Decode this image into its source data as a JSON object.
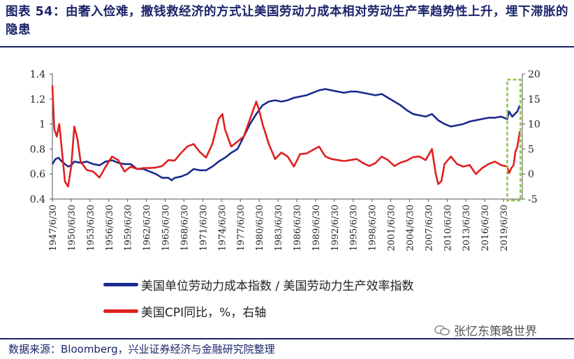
{
  "header": {
    "title": "图表 54：由奢入俭难，撒钱救经济的方式让美国劳动力成本相对劳动生产率趋势性上升，埋下滞胀的隐患"
  },
  "footer": {
    "source": "数据来源：Bloomberg，兴业证券经济与金融研究院整理",
    "watermark": "张忆东策略世界"
  },
  "colors": {
    "blue_series": "#1a2a8c",
    "red_series": "#e02020",
    "highlight_box": "#8bc34a"
  },
  "chart_data": {
    "type": "line",
    "title": "",
    "x_tick_labels": [
      "1947/6/30",
      "1950/6/30",
      "1953/6/30",
      "1956/6/30",
      "1959/6/30",
      "1962/6/30",
      "1965/6/30",
      "1968/6/30",
      "1971/6/30",
      "1974/6/30",
      "1977/6/30",
      "1980/6/30",
      "1983/6/30",
      "1986/6/30",
      "1989/6/30",
      "1992/6/30",
      "1995/6/30",
      "1998/6/30",
      "2001/6/30",
      "2004/6/30",
      "2007/6/30",
      "2010/6/30",
      "2013/6/30",
      "2016/6/30",
      "2019/6/30"
    ],
    "y_left": {
      "range": [
        0.4,
        1.4
      ],
      "ticks": [
        "0.4",
        "0.6",
        "0.8",
        "1",
        "1.2",
        "1.4"
      ]
    },
    "y_right": {
      "range": [
        -5,
        20
      ],
      "ticks": [
        "-5",
        "0",
        "5",
        "10",
        "15",
        "20"
      ]
    },
    "highlight": {
      "from_year": 2020.0,
      "to_year": 2022.1
    },
    "series": [
      {
        "name": "美国单位劳动力成本指数 / 美国劳动力生产效率指数",
        "axis": "left",
        "points": [
          [
            1947.5,
            0.68
          ],
          [
            1948.0,
            0.72
          ],
          [
            1948.5,
            0.73
          ],
          [
            1949.0,
            0.7
          ],
          [
            1949.5,
            0.68
          ],
          [
            1950.0,
            0.66
          ],
          [
            1950.5,
            0.67
          ],
          [
            1951.0,
            0.7
          ],
          [
            1952.0,
            0.69
          ],
          [
            1953.0,
            0.7
          ],
          [
            1954.0,
            0.68
          ],
          [
            1955.0,
            0.67
          ],
          [
            1956.0,
            0.7
          ],
          [
            1957.0,
            0.71
          ],
          [
            1958.0,
            0.69
          ],
          [
            1959.0,
            0.68
          ],
          [
            1960.0,
            0.68
          ],
          [
            1960.5,
            0.66
          ],
          [
            1961.0,
            0.64
          ],
          [
            1962.0,
            0.64
          ],
          [
            1963.0,
            0.62
          ],
          [
            1964.0,
            0.6
          ],
          [
            1965.0,
            0.57
          ],
          [
            1966.0,
            0.57
          ],
          [
            1966.5,
            0.55
          ],
          [
            1967.0,
            0.57
          ],
          [
            1968.0,
            0.58
          ],
          [
            1969.0,
            0.6
          ],
          [
            1970.0,
            0.64
          ],
          [
            1971.0,
            0.63
          ],
          [
            1972.0,
            0.63
          ],
          [
            1973.0,
            0.66
          ],
          [
            1974.0,
            0.7
          ],
          [
            1975.0,
            0.73
          ],
          [
            1976.0,
            0.77
          ],
          [
            1977.0,
            0.8
          ],
          [
            1978.0,
            0.9
          ],
          [
            1979.0,
            1.0
          ],
          [
            1980.0,
            1.08
          ],
          [
            1981.0,
            1.15
          ],
          [
            1982.0,
            1.18
          ],
          [
            1983.0,
            1.19
          ],
          [
            1984.0,
            1.18
          ],
          [
            1985.0,
            1.19
          ],
          [
            1986.0,
            1.21
          ],
          [
            1987.0,
            1.22
          ],
          [
            1988.0,
            1.23
          ],
          [
            1989.0,
            1.25
          ],
          [
            1990.0,
            1.27
          ],
          [
            1991.0,
            1.28
          ],
          [
            1992.0,
            1.27
          ],
          [
            1993.0,
            1.26
          ],
          [
            1994.0,
            1.25
          ],
          [
            1995.0,
            1.26
          ],
          [
            1996.0,
            1.26
          ],
          [
            1997.0,
            1.25
          ],
          [
            1998.0,
            1.24
          ],
          [
            1999.0,
            1.23
          ],
          [
            2000.0,
            1.24
          ],
          [
            2001.0,
            1.21
          ],
          [
            2002.0,
            1.18
          ],
          [
            2003.0,
            1.15
          ],
          [
            2004.0,
            1.11
          ],
          [
            2005.0,
            1.08
          ],
          [
            2006.0,
            1.07
          ],
          [
            2007.0,
            1.06
          ],
          [
            2008.0,
            1.08
          ],
          [
            2009.0,
            1.03
          ],
          [
            2010.0,
            1.0
          ],
          [
            2011.0,
            0.98
          ],
          [
            2012.0,
            0.99
          ],
          [
            2013.0,
            1.0
          ],
          [
            2014.0,
            1.02
          ],
          [
            2015.0,
            1.03
          ],
          [
            2016.0,
            1.04
          ],
          [
            2017.0,
            1.05
          ],
          [
            2018.0,
            1.05
          ],
          [
            2019.0,
            1.06
          ],
          [
            2020.0,
            1.04
          ],
          [
            2020.3,
            1.1
          ],
          [
            2020.8,
            1.06
          ],
          [
            2021.2,
            1.08
          ],
          [
            2021.6,
            1.1
          ],
          [
            2022.0,
            1.15
          ]
        ]
      },
      {
        "name": "美国CPI同比，%，右轴",
        "axis": "right",
        "points": [
          [
            1947.5,
            17.7
          ],
          [
            1947.8,
            9.0
          ],
          [
            1948.2,
            7.5
          ],
          [
            1948.6,
            10.0
          ],
          [
            1949.0,
            5.0
          ],
          [
            1949.5,
            -1.5
          ],
          [
            1950.0,
            -2.5
          ],
          [
            1950.5,
            1.5
          ],
          [
            1951.0,
            9.5
          ],
          [
            1951.5,
            7.0
          ],
          [
            1952.0,
            2.5
          ],
          [
            1953.0,
            0.8
          ],
          [
            1954.0,
            0.5
          ],
          [
            1955.0,
            -0.7
          ],
          [
            1956.0,
            1.5
          ],
          [
            1957.0,
            3.5
          ],
          [
            1958.0,
            2.8
          ],
          [
            1959.0,
            0.5
          ],
          [
            1960.0,
            1.5
          ],
          [
            1961.0,
            1.0
          ],
          [
            1962.0,
            1.2
          ],
          [
            1963.0,
            1.2
          ],
          [
            1964.0,
            1.3
          ],
          [
            1965.0,
            1.6
          ],
          [
            1966.0,
            2.8
          ],
          [
            1967.0,
            2.7
          ],
          [
            1968.0,
            4.2
          ],
          [
            1969.0,
            5.5
          ],
          [
            1970.0,
            6.0
          ],
          [
            1971.0,
            4.4
          ],
          [
            1972.0,
            3.3
          ],
          [
            1973.0,
            6.0
          ],
          [
            1974.0,
            11.0
          ],
          [
            1974.6,
            12.0
          ],
          [
            1975.0,
            9.0
          ],
          [
            1976.0,
            5.5
          ],
          [
            1977.0,
            6.5
          ],
          [
            1978.0,
            7.5
          ],
          [
            1979.0,
            11.0
          ],
          [
            1980.0,
            14.5
          ],
          [
            1980.5,
            12.5
          ],
          [
            1981.0,
            10.0
          ],
          [
            1982.0,
            6.0
          ],
          [
            1983.0,
            3.0
          ],
          [
            1984.0,
            4.3
          ],
          [
            1985.0,
            3.5
          ],
          [
            1986.0,
            1.5
          ],
          [
            1987.0,
            4.0
          ],
          [
            1988.0,
            4.1
          ],
          [
            1989.0,
            4.8
          ],
          [
            1990.0,
            5.5
          ],
          [
            1991.0,
            3.5
          ],
          [
            1992.0,
            3.0
          ],
          [
            1993.0,
            2.8
          ],
          [
            1994.0,
            2.6
          ],
          [
            1995.0,
            2.8
          ],
          [
            1996.0,
            3.0
          ],
          [
            1997.0,
            2.2
          ],
          [
            1998.0,
            1.6
          ],
          [
            1999.0,
            2.2
          ],
          [
            2000.0,
            3.5
          ],
          [
            2001.0,
            2.8
          ],
          [
            2002.0,
            1.6
          ],
          [
            2003.0,
            2.3
          ],
          [
            2004.0,
            2.7
          ],
          [
            2005.0,
            3.4
          ],
          [
            2006.0,
            3.5
          ],
          [
            2007.0,
            2.8
          ],
          [
            2008.0,
            5.0
          ],
          [
            2008.6,
            0.0
          ],
          [
            2009.0,
            -2.0
          ],
          [
            2009.5,
            -1.4
          ],
          [
            2010.0,
            2.0
          ],
          [
            2011.0,
            3.5
          ],
          [
            2012.0,
            2.0
          ],
          [
            2013.0,
            1.5
          ],
          [
            2014.0,
            1.8
          ],
          [
            2015.0,
            0.0
          ],
          [
            2016.0,
            1.2
          ],
          [
            2017.0,
            2.0
          ],
          [
            2018.0,
            2.5
          ],
          [
            2019.0,
            1.8
          ],
          [
            2020.0,
            1.5
          ],
          [
            2020.3,
            0.2
          ],
          [
            2020.7,
            1.3
          ],
          [
            2021.0,
            1.7
          ],
          [
            2021.3,
            4.5
          ],
          [
            2021.6,
            5.4
          ],
          [
            2022.0,
            8.5
          ]
        ]
      }
    ]
  }
}
